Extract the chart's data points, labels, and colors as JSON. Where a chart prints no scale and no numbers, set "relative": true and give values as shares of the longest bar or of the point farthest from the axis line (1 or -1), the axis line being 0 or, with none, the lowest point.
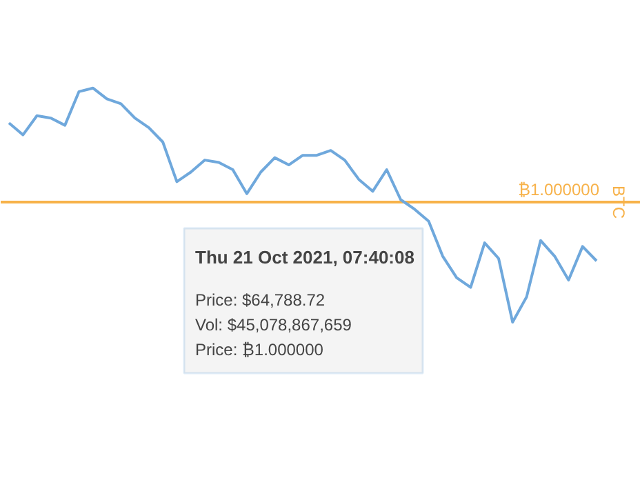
{
  "chart_data": {
    "type": "line",
    "relative": true,
    "y2label": "BTC",
    "categories": [
      null,
      null,
      null,
      null,
      null,
      null,
      null,
      null,
      null,
      null,
      null,
      null,
      null,
      null,
      null,
      null,
      null,
      null,
      null,
      null,
      null,
      null,
      null,
      null,
      null,
      null,
      null,
      null,
      null,
      null,
      null,
      null,
      null,
      null,
      null,
      null,
      null,
      null,
      null,
      null,
      null,
      null,
      null
    ],
    "values": [
      0.66,
      0.56,
      0.72,
      0.7,
      0.64,
      0.92,
      0.95,
      0.86,
      0.82,
      0.7,
      0.62,
      0.5,
      0.17,
      0.25,
      0.35,
      0.33,
      0.27,
      0.07,
      0.25,
      0.37,
      0.31,
      0.39,
      0.39,
      0.43,
      0.35,
      0.19,
      0.09,
      0.27,
      0.02,
      -0.06,
      -0.16,
      -0.45,
      -0.63,
      -0.71,
      -0.34,
      -0.47,
      -1,
      -0.79,
      -0.32,
      -0.45,
      -0.65,
      -0.37,
      -0.49
    ],
    "color": "#6fa8dc",
    "ref_lines": [
      {
        "axis": "y",
        "value": 0,
        "label": "₿1.000000",
        "color": "#f7b24a"
      }
    ],
    "annotations": [
      "Thu 21 Oct 2021, 07:40:08",
      "Price: $64,788.72",
      "Vol: $45,078,867,659",
      "Price: ₿1.000000"
    ]
  }
}
